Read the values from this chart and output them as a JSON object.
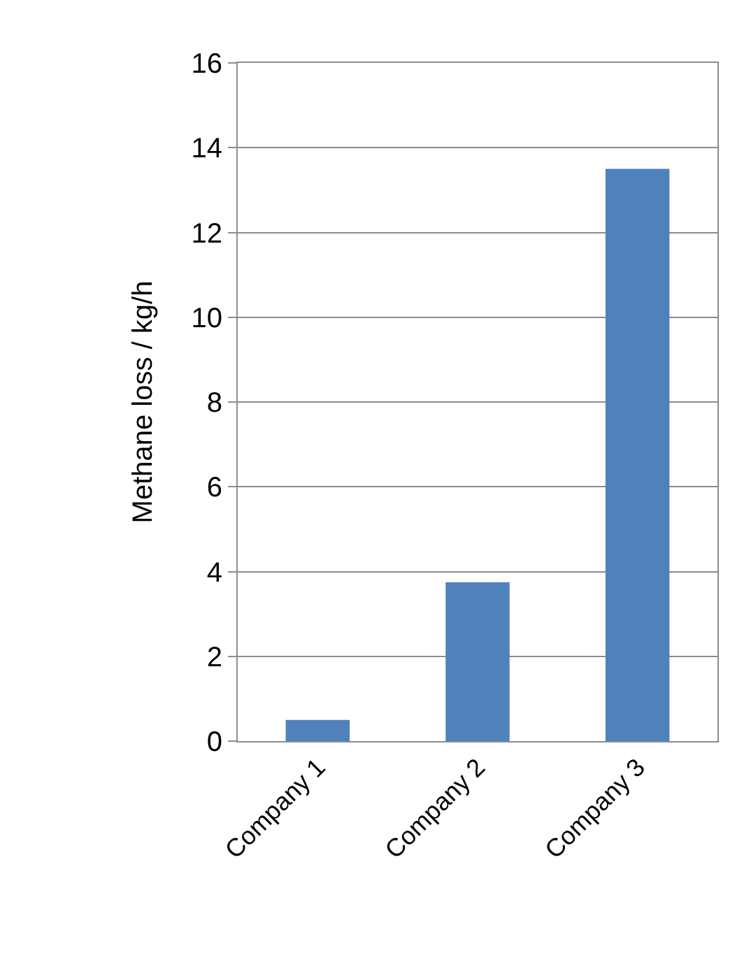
{
  "chart_data": {
    "type": "bar",
    "ylabel": "Methane loss / kg/h",
    "categories": [
      "Company 1",
      "Company 2",
      "Company 3"
    ],
    "values": [
      0.5,
      3.75,
      13.5
    ],
    "color": "#4f81bd",
    "ylim": [
      0,
      16
    ],
    "yticks": [
      0,
      2,
      4,
      6,
      8,
      10,
      12,
      14,
      16
    ],
    "grid": "y"
  }
}
